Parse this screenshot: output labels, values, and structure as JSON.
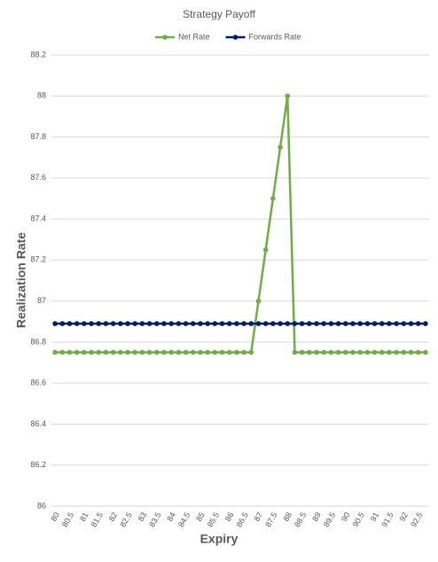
{
  "chart_data": {
    "type": "line",
    "title": "Strategy Payoff",
    "x_label": "Expiry",
    "y_label": "Realization Rate",
    "categories": [
      80,
      null,
      80.5,
      null,
      81,
      null,
      81.5,
      null,
      82,
      null,
      82.5,
      null,
      83,
      null,
      83.5,
      null,
      84,
      null,
      84.5,
      null,
      85,
      null,
      85.5,
      null,
      86,
      null,
      86.5,
      null,
      87,
      null,
      87.5,
      null,
      88,
      null,
      88.5,
      null,
      89,
      null,
      89.5,
      null,
      90,
      null,
      90.5,
      null,
      91,
      null,
      91.5,
      null,
      92,
      null,
      92.5,
      null
    ],
    "series": [
      {
        "name": "Net Rate",
        "color": "#70ad47",
        "values": [
          86.75,
          86.75,
          86.75,
          86.75,
          86.75,
          86.75,
          86.75,
          86.75,
          86.75,
          86.75,
          86.75,
          86.75,
          86.75,
          86.75,
          86.75,
          86.75,
          86.75,
          86.75,
          86.75,
          86.75,
          86.75,
          86.75,
          86.75,
          86.75,
          86.75,
          86.75,
          86.75,
          86.75,
          87,
          87.25,
          87.5,
          87.75,
          88,
          86.75,
          86.75,
          86.75,
          86.75,
          86.75,
          86.75,
          86.75,
          86.75,
          86.75,
          86.75,
          86.75,
          86.75,
          86.75,
          86.75,
          86.75,
          86.75,
          86.75,
          86.75,
          86.75
        ]
      },
      {
        "name": "Forwards Rate",
        "color": "#002060",
        "values": [
          86.89,
          86.89,
          86.89,
          86.89,
          86.89,
          86.89,
          86.89,
          86.89,
          86.89,
          86.89,
          86.89,
          86.89,
          86.89,
          86.89,
          86.89,
          86.89,
          86.89,
          86.89,
          86.89,
          86.89,
          86.89,
          86.89,
          86.89,
          86.89,
          86.89,
          86.89,
          86.89,
          86.89,
          86.89,
          86.89,
          86.89,
          86.89,
          86.89,
          86.89,
          86.89,
          86.89,
          86.89,
          86.89,
          86.89,
          86.89,
          86.89,
          86.89,
          86.89,
          86.89,
          86.89,
          86.89,
          86.89,
          86.89,
          86.89,
          86.89,
          86.89,
          86.89
        ]
      }
    ],
    "ylim": [
      86,
      88.2
    ],
    "yticks": [
      86,
      86.2,
      86.4,
      86.6,
      86.8,
      87,
      87.2,
      87.4,
      87.6,
      87.8,
      88,
      88.2
    ],
    "grid": true,
    "legend": "top"
  }
}
